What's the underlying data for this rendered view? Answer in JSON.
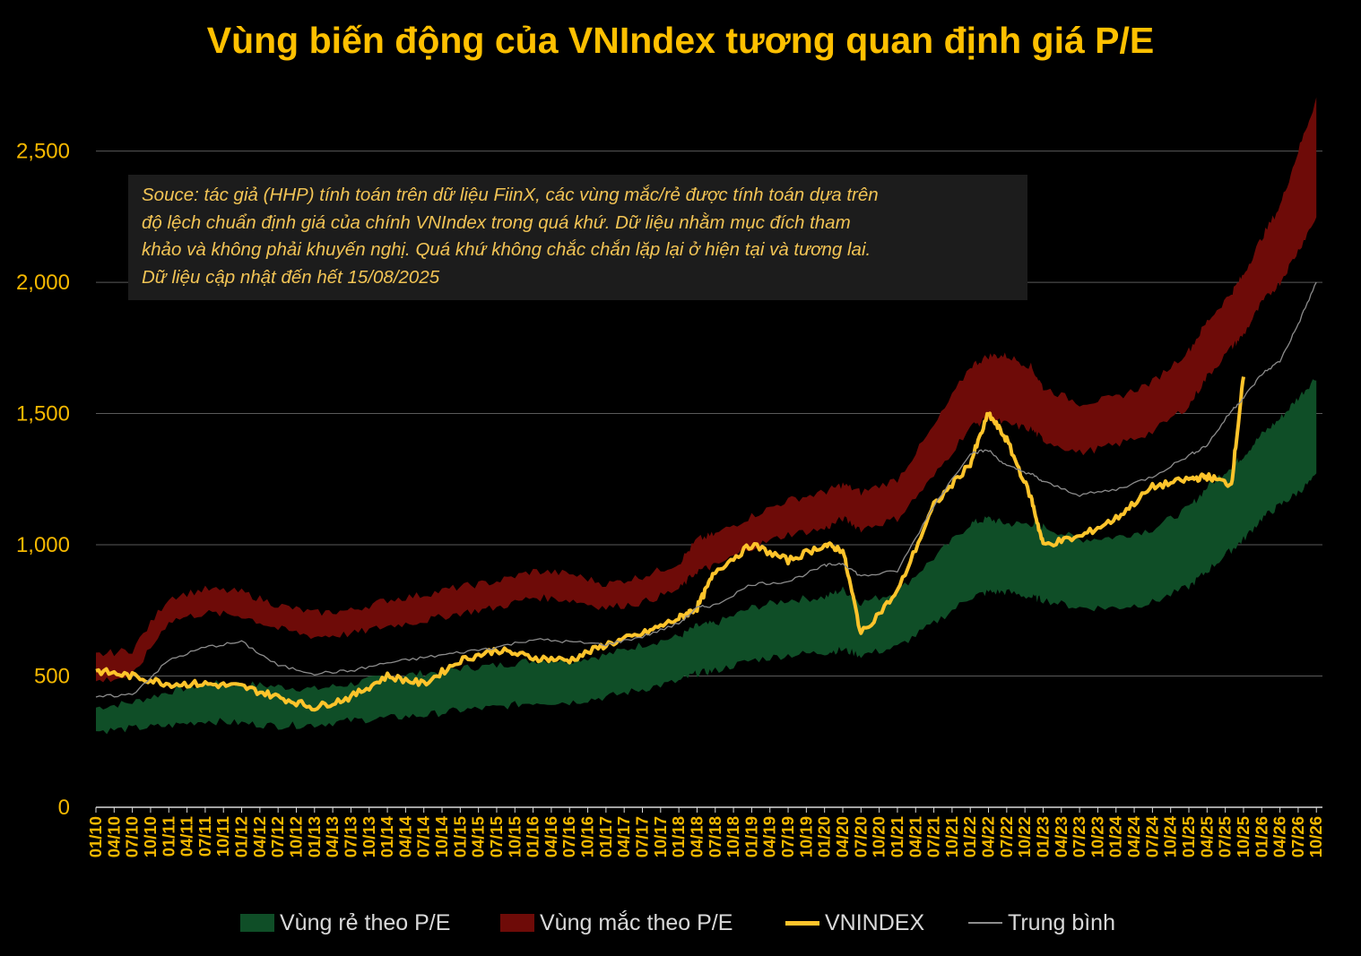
{
  "title": "Vùng biến động của VNIndex tương quan định giá P/E",
  "note": {
    "lines": [
      "Souce: tác giả (HHP) tính toán trên dữ liệu FiinX, các vùng mắc/rẻ được tính toán dựa trên",
      "độ lệch chuẩn định giá của chính VNIndex trong quá khứ. Dữ liệu nhằm mục đích tham",
      "khảo và không phải khuyến nghị. Quá khứ không chắc chắn lặp lại ở hiện tại và tương lai.",
      "Dữ liệu cập nhật đến hết 15/08/2025"
    ]
  },
  "colors": {
    "background": "#000000",
    "title": "#ffc000",
    "cheap_zone": "#0f4e27",
    "expensive_zone": "#6e0b08",
    "vnindex": "#ffc42b",
    "average": "#8c8c8c",
    "axis_text": "#f5b800",
    "grid": "#5a5a5a"
  },
  "legend": [
    {
      "key": "cheap",
      "label": "Vùng rẻ theo P/E",
      "kind": "box",
      "color": "#0f4e27"
    },
    {
      "key": "expensive",
      "label": "Vùng mắc theo P/E",
      "kind": "box",
      "color": "#6e0b08"
    },
    {
      "key": "vnindex",
      "label": "VNINDEX",
      "kind": "thick-line",
      "color": "#ffc42b"
    },
    {
      "key": "average",
      "label": "Trung bình",
      "kind": "thin-line",
      "color": "#8c8c8c"
    }
  ],
  "chart_data": {
    "type": "line",
    "title": "Vùng biến động của VNIndex tương quan định giá P/E",
    "xlabel": "",
    "ylabel": "",
    "ylim": [
      0,
      2700
    ],
    "yticks": [
      0,
      500,
      1000,
      1500,
      2000,
      2500
    ],
    "ytick_labels": [
      "0",
      "500",
      "1,000",
      "1,500",
      "2,000",
      "2,500"
    ],
    "grid": true,
    "legend_position": "bottom",
    "x_tick_labels": [
      "01/10",
      "04/10",
      "07/10",
      "10/10",
      "01/11",
      "04/11",
      "07/11",
      "10/11",
      "01/12",
      "04/12",
      "07/12",
      "10/12",
      "01/13",
      "04/13",
      "07/13",
      "10/13",
      "01/14",
      "04/14",
      "07/14",
      "10/14",
      "01/15",
      "04/15",
      "07/15",
      "10/15",
      "01/16",
      "04/16",
      "07/16",
      "10/16",
      "01/17",
      "04/17",
      "07/17",
      "10/17",
      "01/18",
      "04/18",
      "07/18",
      "10/18",
      "01/19",
      "04/19",
      "07/19",
      "10/19",
      "01/20",
      "04/20",
      "07/20",
      "10/20",
      "01/21",
      "04/21",
      "07/21",
      "10/21",
      "01/22",
      "04/22",
      "07/22",
      "10/22",
      "01/23",
      "04/23",
      "07/23",
      "10/23",
      "01/24",
      "04/24",
      "07/24",
      "10/24",
      "01/25",
      "04/25",
      "07/25",
      "10/25",
      "01/26",
      "04/26",
      "07/26",
      "10/26"
    ],
    "x": [
      "2010-01",
      "2010-07",
      "2011-01",
      "2011-07",
      "2012-01",
      "2012-07",
      "2013-01",
      "2013-07",
      "2014-01",
      "2014-07",
      "2015-01",
      "2015-07",
      "2016-01",
      "2016-07",
      "2017-01",
      "2017-07",
      "2018-01",
      "2018-04",
      "2018-07",
      "2019-01",
      "2019-07",
      "2020-01",
      "2020-04",
      "2020-07",
      "2021-01",
      "2021-07",
      "2022-01",
      "2022-04",
      "2022-07",
      "2022-11",
      "2023-01",
      "2023-07",
      "2024-01",
      "2024-07",
      "2025-01",
      "2025-04",
      "2025-08",
      "2025-10",
      "2026-01",
      "2026-04",
      "2026-07",
      "2026-10"
    ],
    "series": [
      {
        "name": "Vùng rẻ theo P/E",
        "role": "band",
        "lower": [
          290,
          300,
          310,
          330,
          320,
          310,
          315,
          330,
          340,
          350,
          370,
          380,
          400,
          400,
          420,
          450,
          480,
          510,
          520,
          560,
          580,
          590,
          600,
          580,
          610,
          700,
          800,
          820,
          820,
          800,
          790,
          760,
          760,
          780,
          840,
          900,
          980,
          1020,
          1100,
          1150,
          1200,
          1260
        ],
        "upper": [
          380,
          400,
          440,
          470,
          470,
          460,
          450,
          470,
          500,
          510,
          530,
          540,
          560,
          560,
          580,
          620,
          650,
          690,
          700,
          760,
          790,
          800,
          830,
          780,
          820,
          950,
          1080,
          1100,
          1080,
          1080,
          1070,
          1020,
          1030,
          1060,
          1140,
          1220,
          1300,
          1340,
          1420,
          1480,
          1560,
          1640
        ]
      },
      {
        "name": "Vùng mắc theo P/E",
        "role": "band",
        "lower": [
          480,
          500,
          710,
          740,
          730,
          680,
          650,
          660,
          690,
          710,
          740,
          760,
          800,
          790,
          760,
          780,
          830,
          900,
          920,
          990,
          1040,
          1060,
          1100,
          1060,
          1100,
          1260,
          1450,
          1480,
          1460,
          1440,
          1400,
          1350,
          1380,
          1430,
          1530,
          1640,
          1750,
          1800,
          1920,
          2000,
          2120,
          2250
        ],
        "upper": [
          580,
          600,
          800,
          830,
          820,
          770,
          740,
          750,
          790,
          810,
          840,
          860,
          900,
          890,
          850,
          880,
          930,
          1020,
          1040,
          1110,
          1170,
          1200,
          1230,
          1200,
          1250,
          1450,
          1680,
          1720,
          1720,
          1680,
          1600,
          1540,
          1560,
          1620,
          1740,
          1850,
          1960,
          2030,
          2170,
          2290,
          2500,
          2700
        ]
      },
      {
        "name": "VNINDEX",
        "role": "line",
        "values": [
          520,
          500,
          470,
          470,
          460,
          420,
          380,
          420,
          500,
          470,
          560,
          600,
          570,
          560,
          620,
          660,
          720,
          760,
          900,
          1000,
          940,
          1000,
          980,
          660,
          820,
          1150,
          1310,
          1500,
          1400,
          1180,
          1000,
          1030,
          1100,
          1220,
          1250,
          1260,
          1230,
          1640,
          null,
          null,
          null,
          null
        ]
      },
      {
        "name": "Trung bình",
        "role": "line",
        "values": [
          420,
          430,
          560,
          610,
          630,
          540,
          510,
          520,
          550,
          570,
          590,
          610,
          640,
          630,
          620,
          650,
          700,
          760,
          770,
          850,
          860,
          920,
          930,
          880,
          900,
          1150,
          1350,
          1360,
          1300,
          1270,
          1240,
          1190,
          1210,
          1260,
          1340,
          1380,
          1510,
          1560,
          1650,
          1700,
          1840,
          2000
        ]
      }
    ]
  }
}
